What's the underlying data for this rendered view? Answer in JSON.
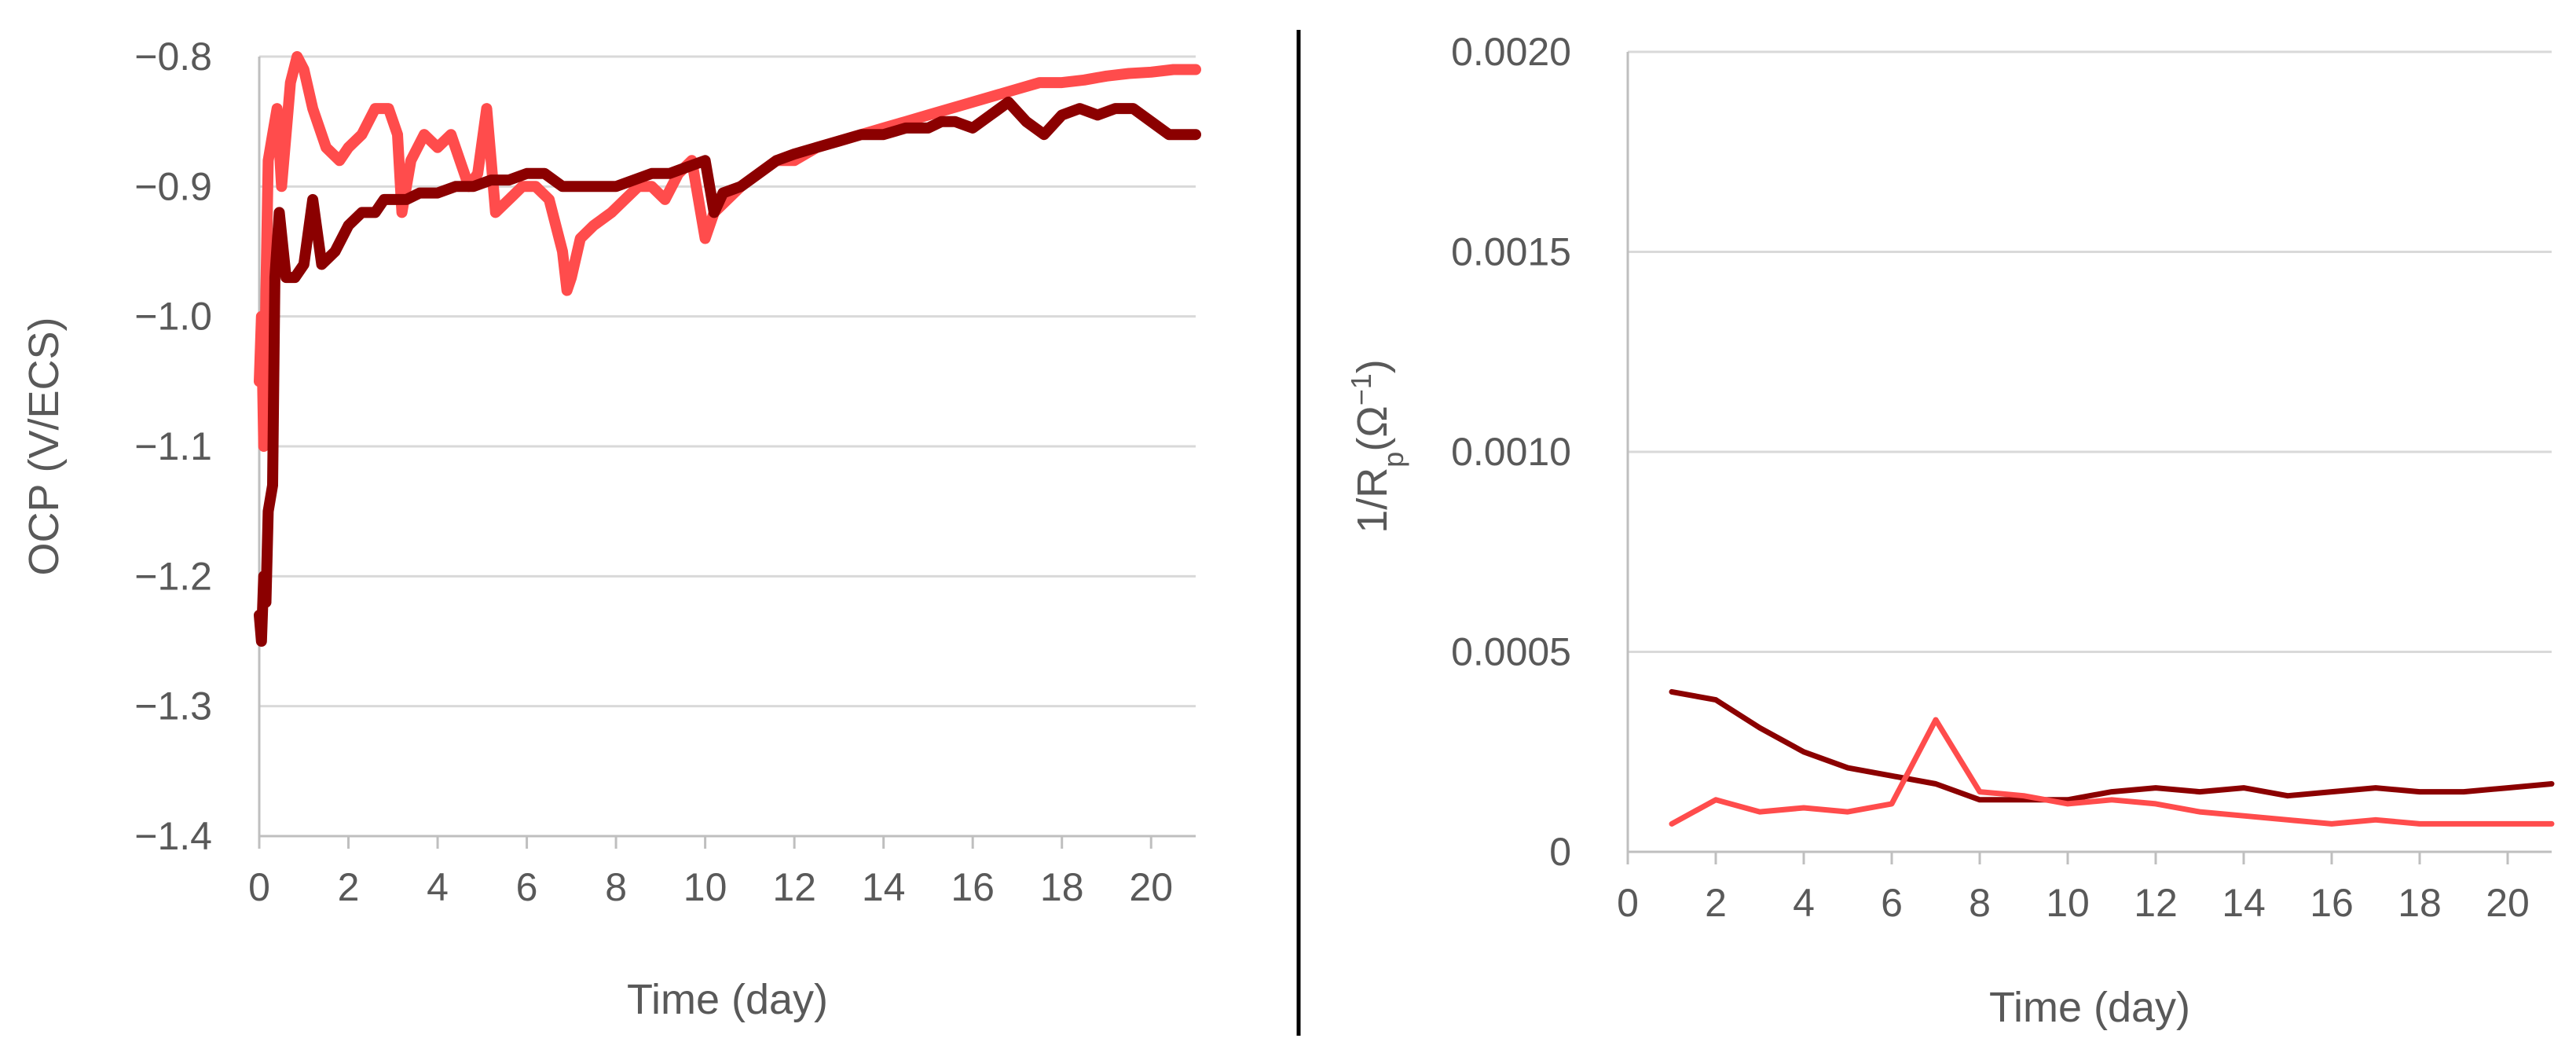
{
  "charts": [
    {
      "xlabel": "Time (day)",
      "ylabel": "OCP (V/ECS)",
      "yticks": [
        "−1.4",
        "−1.3",
        "−1.2",
        "−1.1",
        "−1.0",
        "−0.9",
        "−0.8"
      ],
      "xticks": [
        "0",
        "2",
        "4",
        "6",
        "8",
        "10",
        "12",
        "14",
        "16",
        "18",
        "20"
      ]
    },
    {
      "xlabel": "Time (day)",
      "ylabel_main": "1/R",
      "ylabel_sub": "p",
      "ylabel_paren": "(Ω",
      "ylabel_sup": "−1",
      "ylabel_close": ")",
      "yticks": [
        "0",
        "0.0005",
        "0.0010",
        "0.0015",
        "0.0020"
      ],
      "xticks": [
        "0",
        "2",
        "4",
        "6",
        "8",
        "10",
        "12",
        "14",
        "16",
        "18",
        "20"
      ]
    }
  ],
  "colors": {
    "dark_series": "#8b0000",
    "light_series": "#ff4c4c",
    "grid": "#d9d9d9",
    "axis": "#bfbfbf",
    "text": "#595959",
    "divider": "#000000"
  },
  "chart_data": [
    {
      "type": "line",
      "xlabel": "Time (day)",
      "ylabel": "OCP (V/ECS)",
      "xlim": [
        0,
        21
      ],
      "ylim": [
        -1.4,
        -0.8
      ],
      "grid": true,
      "series": [
        {
          "color": "#ff4c4c",
          "x": [
            0,
            0.05,
            0.1,
            0.15,
            0.2,
            0.3,
            0.4,
            0.5,
            0.6,
            0.7,
            0.85,
            1.0,
            1.2,
            1.5,
            1.8,
            2.0,
            2.3,
            2.6,
            2.9,
            3.1,
            3.2,
            3.4,
            3.7,
            4.0,
            4.3,
            4.5,
            4.7,
            4.9,
            5.1,
            5.3,
            5.6,
            5.9,
            6.2,
            6.5,
            6.8,
            6.9,
            7.0,
            7.2,
            7.5,
            7.9,
            8.2,
            8.5,
            8.8,
            9.1,
            9.4,
            9.7,
            10.0,
            10.2,
            10.5,
            10.8,
            11.2,
            11.6,
            12.0,
            12.5,
            13.0,
            13.5,
            14.0,
            14.5,
            15.0,
            15.5,
            16.0,
            16.5,
            17.0,
            17.5,
            18.0,
            18.5,
            19.0,
            19.5,
            20.0,
            20.5,
            21.0
          ],
          "y": [
            -1.05,
            -1.0,
            -1.1,
            -0.98,
            -0.88,
            -0.86,
            -0.84,
            -0.9,
            -0.86,
            -0.82,
            -0.8,
            -0.81,
            -0.84,
            -0.87,
            -0.88,
            -0.87,
            -0.86,
            -0.84,
            -0.84,
            -0.86,
            -0.92,
            -0.88,
            -0.86,
            -0.87,
            -0.86,
            -0.88,
            -0.9,
            -0.89,
            -0.84,
            -0.92,
            -0.91,
            -0.9,
            -0.9,
            -0.91,
            -0.95,
            -0.98,
            -0.97,
            -0.94,
            -0.93,
            -0.92,
            -0.91,
            -0.9,
            -0.9,
            -0.91,
            -0.89,
            -0.88,
            -0.94,
            -0.92,
            -0.91,
            -0.9,
            -0.89,
            -0.88,
            -0.88,
            -0.87,
            -0.865,
            -0.86,
            -0.855,
            -0.85,
            -0.845,
            -0.84,
            -0.835,
            -0.83,
            -0.825,
            -0.82,
            -0.82,
            -0.818,
            -0.815,
            -0.813,
            -0.812,
            -0.81,
            -0.81
          ]
        },
        {
          "color": "#8b0000",
          "x": [
            0,
            0.05,
            0.1,
            0.15,
            0.2,
            0.3,
            0.35,
            0.45,
            0.6,
            0.8,
            1.0,
            1.2,
            1.4,
            1.7,
            2.0,
            2.3,
            2.6,
            2.8,
            3.0,
            3.3,
            3.6,
            4.0,
            4.4,
            4.8,
            5.2,
            5.6,
            6.0,
            6.4,
            6.8,
            7.2,
            7.6,
            8.0,
            8.4,
            8.8,
            9.2,
            9.6,
            10.0,
            10.2,
            10.4,
            10.8,
            11.2,
            11.6,
            12.0,
            12.5,
            13.0,
            13.5,
            14.0,
            14.5,
            15.0,
            15.3,
            15.6,
            16.0,
            16.4,
            16.8,
            17.2,
            17.6,
            18.0,
            18.4,
            18.8,
            19.2,
            19.6,
            20.0,
            20.4,
            20.8,
            21.0
          ],
          "y": [
            -1.23,
            -1.25,
            -1.2,
            -1.22,
            -1.15,
            -1.13,
            -0.97,
            -0.92,
            -0.97,
            -0.97,
            -0.96,
            -0.91,
            -0.96,
            -0.95,
            -0.93,
            -0.92,
            -0.92,
            -0.91,
            -0.91,
            -0.91,
            -0.905,
            -0.905,
            -0.9,
            -0.9,
            -0.895,
            -0.895,
            -0.89,
            -0.89,
            -0.9,
            -0.9,
            -0.9,
            -0.9,
            -0.895,
            -0.89,
            -0.89,
            -0.885,
            -0.88,
            -0.92,
            -0.905,
            -0.9,
            -0.89,
            -0.88,
            -0.875,
            -0.87,
            -0.865,
            -0.86,
            -0.86,
            -0.855,
            -0.855,
            -0.85,
            -0.85,
            -0.855,
            -0.845,
            -0.835,
            -0.85,
            -0.86,
            -0.845,
            -0.84,
            -0.845,
            -0.84,
            -0.84,
            -0.85,
            -0.86,
            -0.86,
            -0.86
          ]
        }
      ]
    },
    {
      "type": "line",
      "xlabel": "Time (day)",
      "ylabel": "1/Rp(Ω−1)",
      "xlim": [
        0,
        21
      ],
      "ylim": [
        0,
        0.002
      ],
      "grid": true,
      "series": [
        {
          "color": "#8b0000",
          "x": [
            1,
            2,
            3,
            4,
            5,
            6,
            7,
            8,
            9,
            10,
            11,
            12,
            13,
            14,
            15,
            16,
            17,
            18,
            19,
            20,
            21
          ],
          "y": [
            0.0004,
            0.00038,
            0.00031,
            0.00025,
            0.00021,
            0.00019,
            0.00017,
            0.00013,
            0.00013,
            0.00013,
            0.00015,
            0.00016,
            0.00015,
            0.00016,
            0.00014,
            0.00015,
            0.00016,
            0.00015,
            0.00015,
            0.00016,
            0.00017
          ]
        },
        {
          "color": "#ff4c4c",
          "x": [
            1,
            2,
            3,
            4,
            5,
            6,
            7,
            8,
            9,
            10,
            11,
            12,
            13,
            14,
            15,
            16,
            17,
            18,
            19,
            20,
            21
          ],
          "y": [
            7e-05,
            0.00013,
            0.0001,
            0.00011,
            0.0001,
            0.00012,
            0.00033,
            0.00015,
            0.00014,
            0.00012,
            0.00013,
            0.00012,
            0.0001,
            9e-05,
            8e-05,
            7e-05,
            8e-05,
            7e-05,
            7e-05,
            7e-05,
            7e-05
          ]
        }
      ]
    }
  ]
}
